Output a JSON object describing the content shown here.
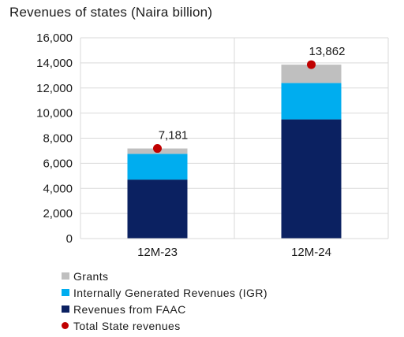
{
  "chart_data": {
    "type": "bar",
    "stacked": true,
    "title": "Revenues of states (Naira billion)",
    "categories": [
      "12M-23",
      "12M-24"
    ],
    "series": [
      {
        "name": "Revenues from FAAC",
        "values": [
          4700,
          9500
        ],
        "color": "#0b2161"
      },
      {
        "name": "Internally Generated Revenues (IGR)",
        "values": [
          2050,
          2900
        ],
        "color": "#00adef"
      },
      {
        "name": "Grants",
        "values": [
          431,
          1462
        ],
        "color": "#bfbfbf"
      }
    ],
    "totals": {
      "name": "Total State revenues",
      "values": [
        7181,
        13862
      ],
      "labels": [
        "7,181",
        "13,862"
      ],
      "color": "#c00000"
    },
    "ylim": [
      0,
      16000
    ],
    "yticks": [
      0,
      2000,
      4000,
      6000,
      8000,
      10000,
      12000,
      14000,
      16000
    ],
    "ytick_labels": [
      "0",
      "2,000",
      "4,000",
      "6,000",
      "8,000",
      "10,000",
      "12,000",
      "14,000",
      "16,000"
    ],
    "grid": true,
    "legend_position": "bottom-left"
  }
}
